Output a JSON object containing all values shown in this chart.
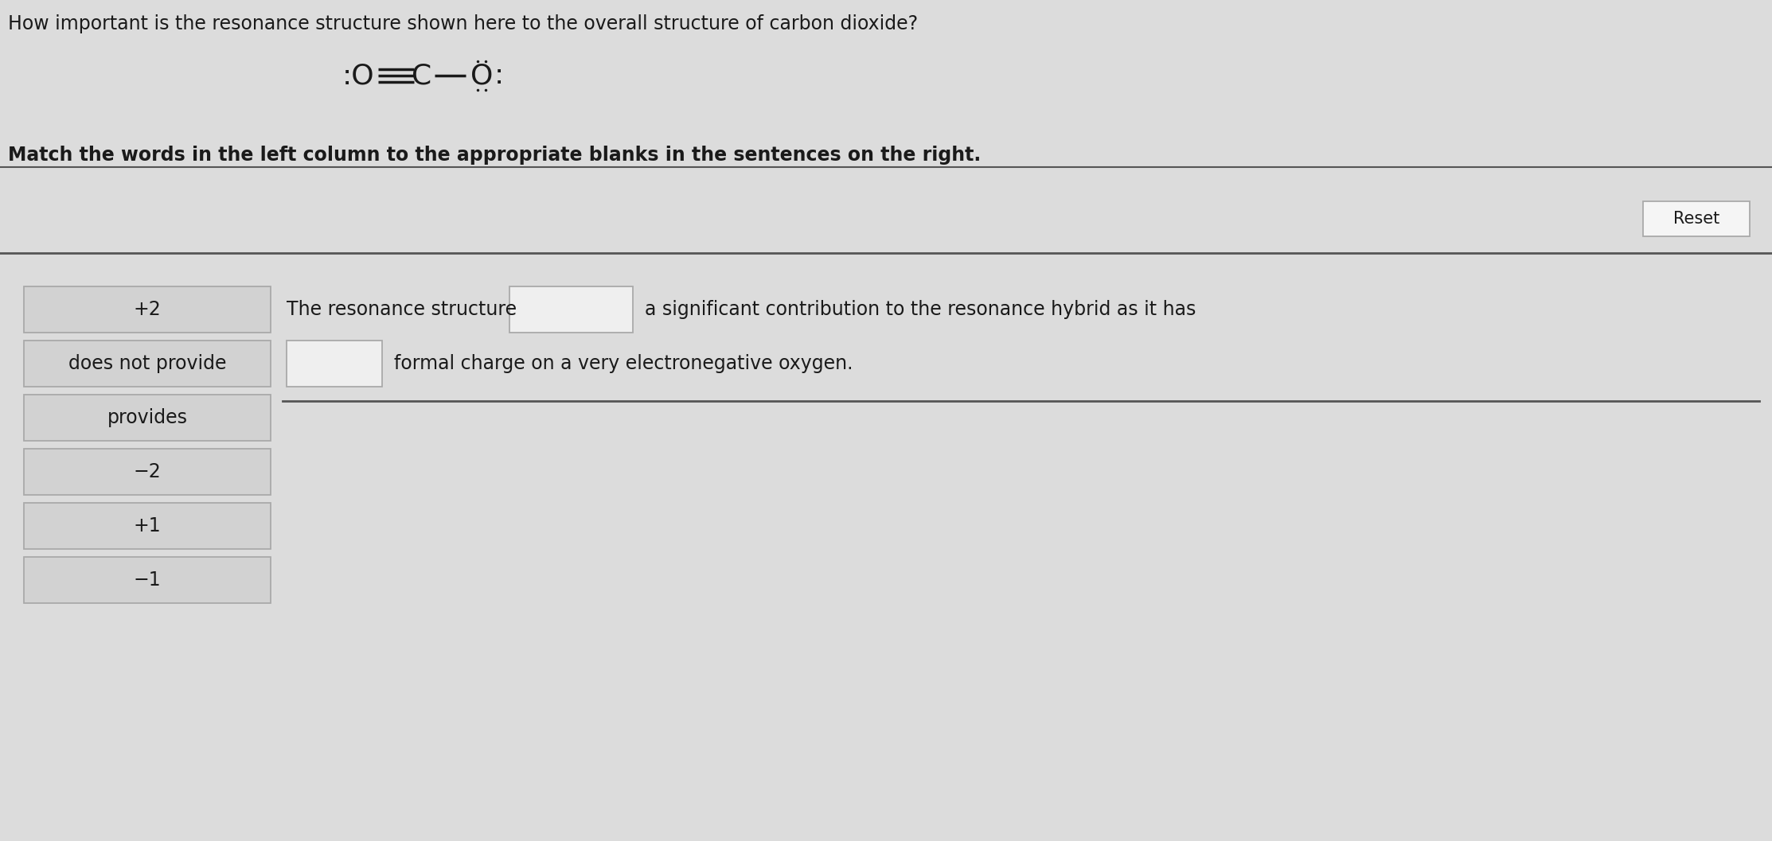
{
  "bg_color": "#dcdcdc",
  "title_question": "How important is the resonance structure shown here to the overall structure of carbon dioxide?",
  "instruction": "Match the words in the left column to the appropriate blanks in the sentences on the right.",
  "reset_label": "Reset",
  "left_column_items": [
    "+2",
    "does not provide",
    "provides",
    "−2",
    "+1",
    "−1"
  ],
  "sentence_line1_pre": "The resonance structure",
  "sentence_line1_post": "a significant contribution to the resonance hybrid as it has",
  "sentence_line2_post": "formal charge on a very electronegative oxygen.",
  "box_fill": "#d2d2d2",
  "box_edge": "#aaaaaa",
  "blank_fill": "#efefef",
  "blank_edge": "#aaaaaa",
  "reset_fill": "#f5f5f5",
  "reset_edge": "#aaaaaa",
  "text_color": "#1a1a1a",
  "divider_color": "#555555",
  "font_size_title": 17,
  "font_size_instruction": 17,
  "font_size_items": 17,
  "font_size_sentence": 17,
  "font_size_molecule": 26,
  "font_size_reset": 15
}
